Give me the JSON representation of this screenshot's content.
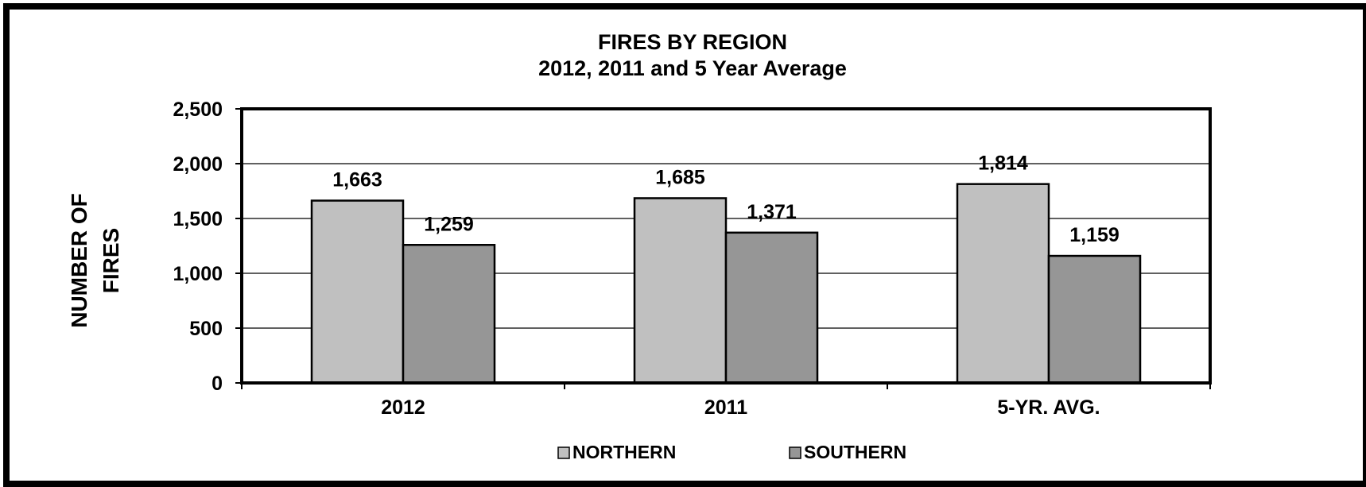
{
  "chart_data": {
    "type": "bar",
    "title": "FIRES BY REGION",
    "subtitle": "2012, 2011 and 5 Year Average",
    "ylabel_lines": [
      "NUMBER OF",
      "FIRES"
    ],
    "xlabel": "",
    "categories": [
      "2012",
      "2011",
      "5-YR. AVG."
    ],
    "series": [
      {
        "name": "NORTHERN",
        "values": [
          1663,
          1685,
          1814
        ],
        "labels": [
          "1,663",
          "1,685",
          "1,814"
        ],
        "color": "#c0c0c0"
      },
      {
        "name": "SOUTHERN",
        "values": [
          1259,
          1371,
          1159
        ],
        "labels": [
          "1,259",
          "1,371",
          "1,159"
        ],
        "color": "#969696"
      }
    ],
    "ylim": [
      0,
      2500
    ],
    "yticks": [
      0,
      500,
      1000,
      1500,
      2000,
      2500
    ],
    "ytick_labels": [
      "0",
      "500",
      "1,000",
      "1,500",
      "2,000",
      "2,500"
    ],
    "grid": true,
    "legend_position": "bottom"
  }
}
